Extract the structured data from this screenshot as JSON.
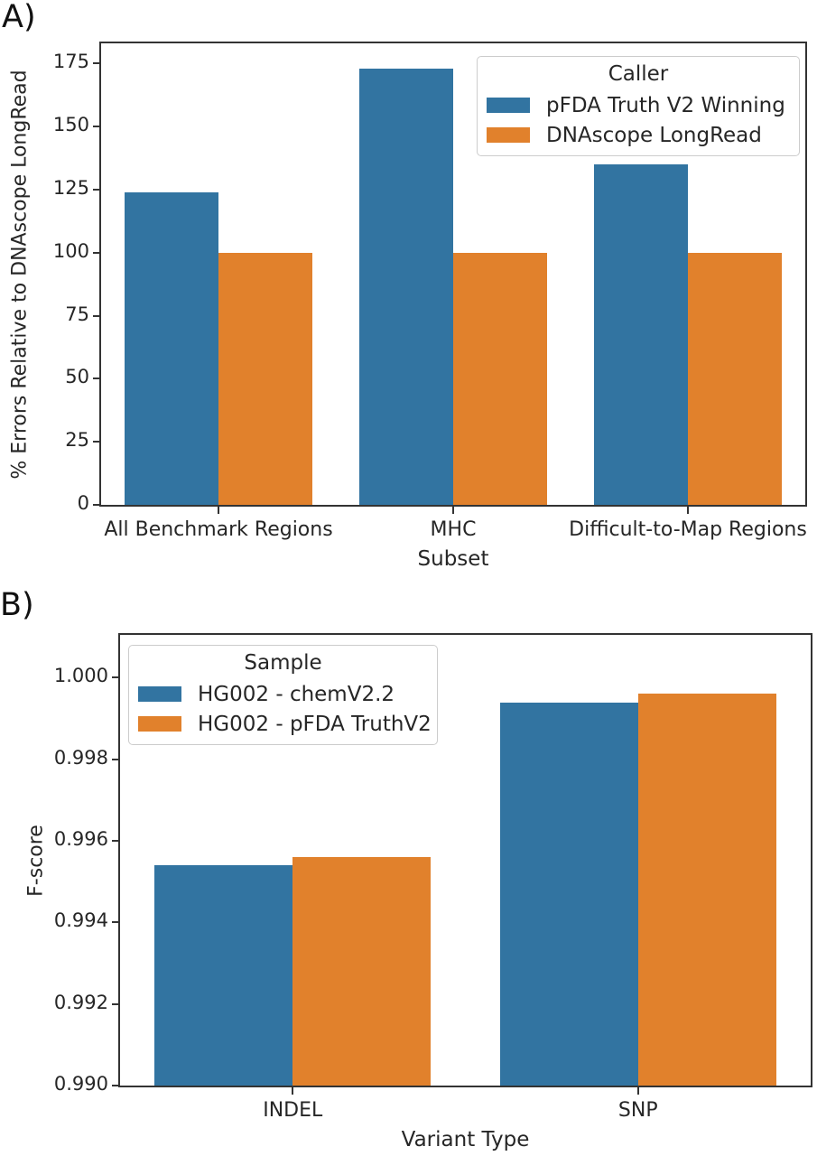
{
  "figure": {
    "background": "#ffffff",
    "text_color": "#262626",
    "spine_color": "#333333",
    "legend_border_color": "#cccccc",
    "palette": {
      "blue": "#3274a1",
      "orange": "#e1812c"
    }
  },
  "panels": [
    {
      "label": "A)"
    },
    {
      "label": "B)"
    }
  ],
  "chart_data": [
    {
      "type": "bar",
      "panel": "A",
      "title": "",
      "categories": [
        "All Benchmark Regions",
        "MHC",
        "Difficult-to-Map Regions"
      ],
      "series": [
        {
          "name": "pFDA Truth V2 Winning",
          "color": "#3274a1",
          "values": [
            124,
            173,
            135
          ]
        },
        {
          "name": "DNAscope LongRead",
          "color": "#e1812c",
          "values": [
            100,
            100,
            100
          ]
        }
      ],
      "xlabel": "Subset",
      "ylabel": "% Errors Relative to DNAscope LongRead",
      "ylim": [
        0,
        183
      ],
      "yticks": [
        0,
        25,
        50,
        75,
        100,
        125,
        150,
        175
      ],
      "ytick_labels": [
        "0",
        "25",
        "50",
        "75",
        "100",
        "125",
        "150",
        "175"
      ],
      "legend": {
        "title": "Caller",
        "position": "upper right"
      },
      "grid": false
    },
    {
      "type": "bar",
      "panel": "B",
      "title": "",
      "categories": [
        "INDEL",
        "SNP"
      ],
      "series": [
        {
          "name": "HG002 - chemV2.2",
          "color": "#3274a1",
          "values": [
            0.9954,
            0.9994
          ]
        },
        {
          "name": "HG002 - pFDA TruthV2",
          "color": "#e1812c",
          "values": [
            0.9956,
            0.9996
          ]
        }
      ],
      "xlabel": "Variant Type",
      "ylabel": "F-score",
      "ylim": [
        0.99,
        1.00105
      ],
      "yticks": [
        0.99,
        0.992,
        0.994,
        0.996,
        0.998,
        1.0
      ],
      "ytick_labels": [
        "0.990",
        "0.992",
        "0.994",
        "0.996",
        "0.998",
        "1.000"
      ],
      "legend": {
        "title": "Sample",
        "position": "upper left"
      },
      "grid": false
    }
  ]
}
